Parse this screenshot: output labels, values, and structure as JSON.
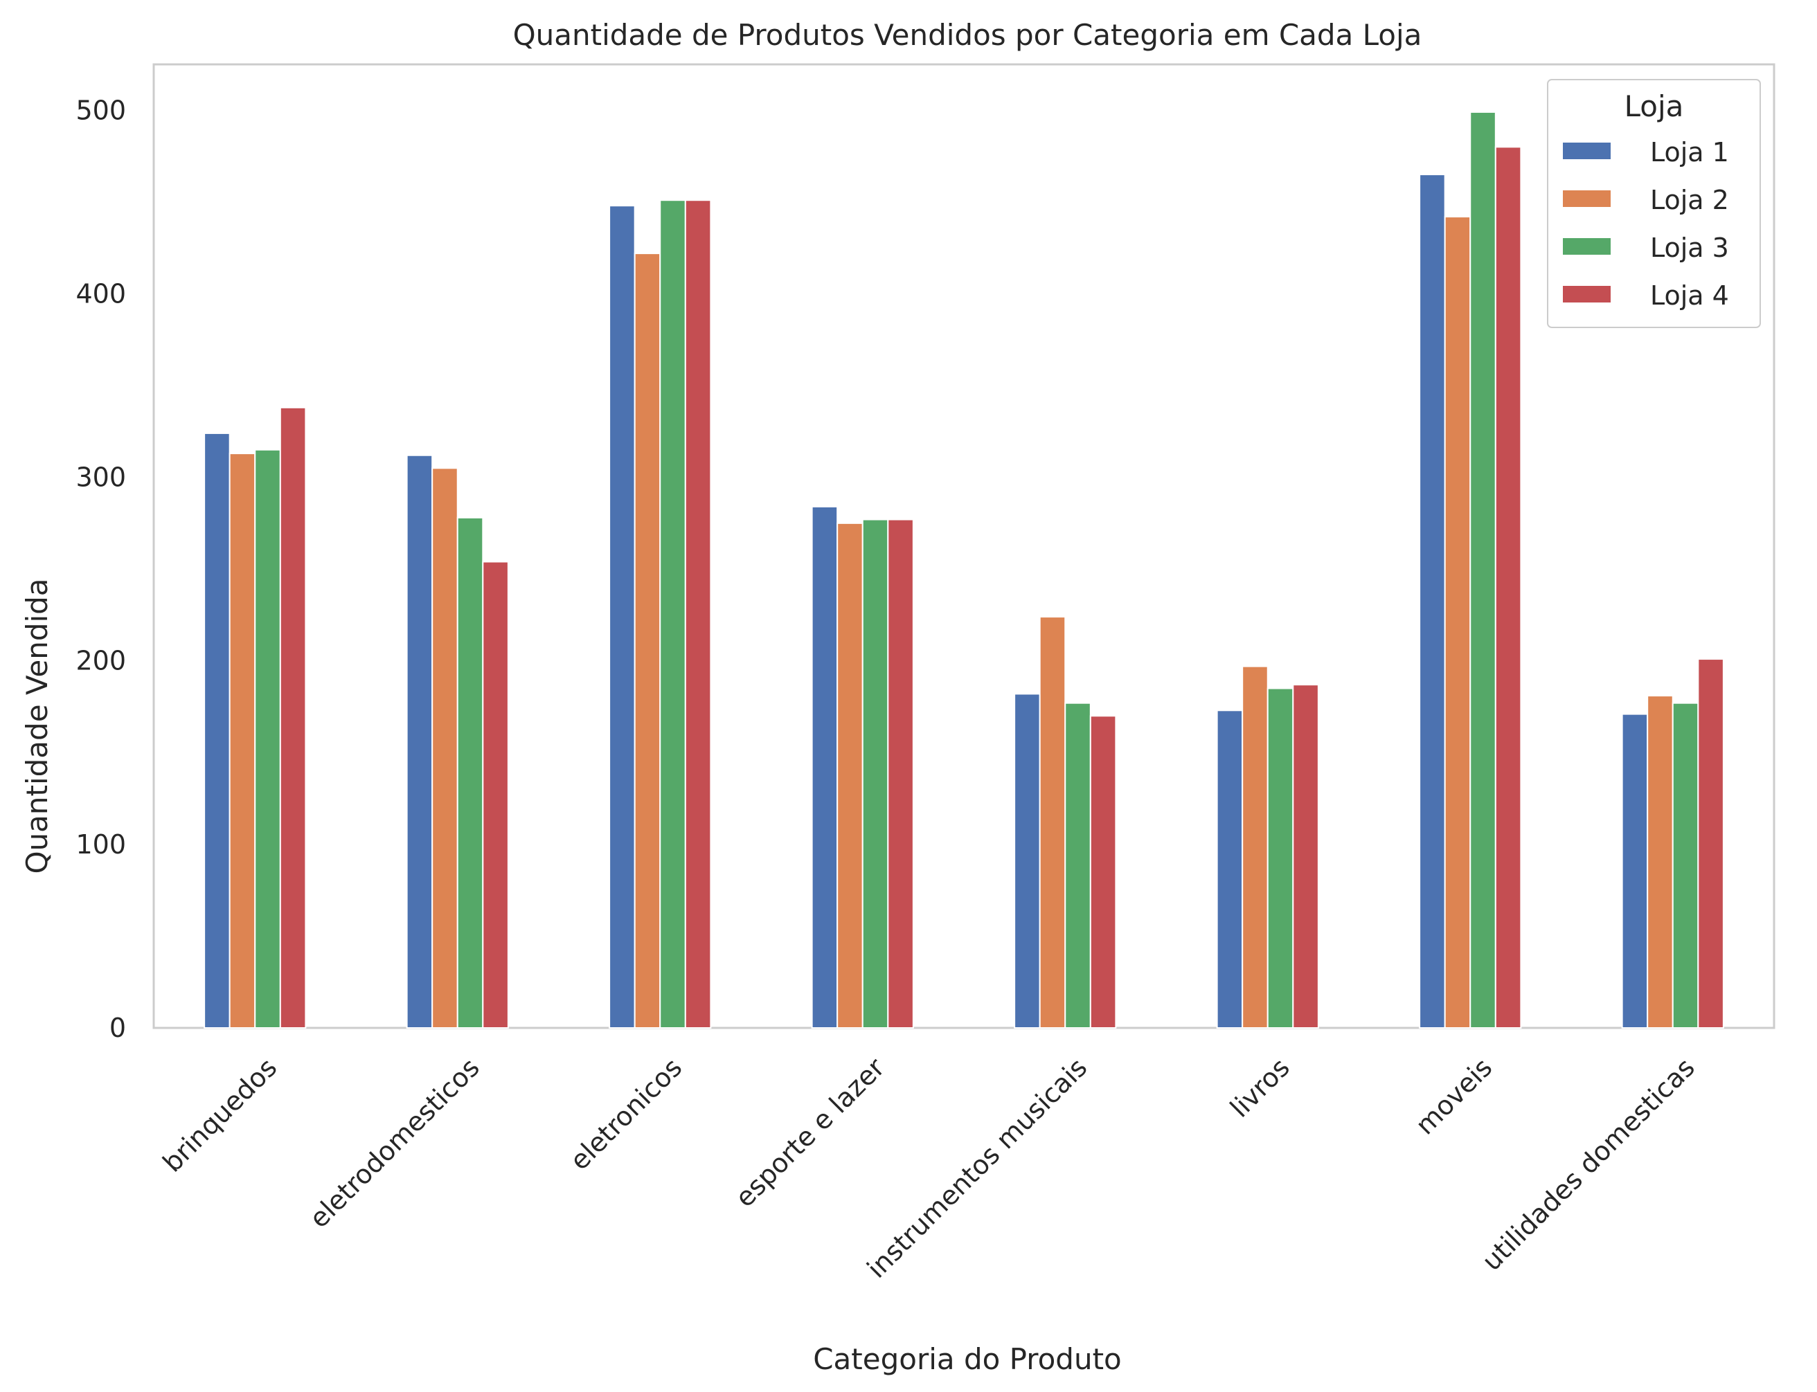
{
  "chart_data": {
    "type": "bar",
    "title": "Quantidade de Produtos Vendidos por Categoria em Cada Loja",
    "xlabel": "Categoria do Produto",
    "ylabel": "Quantidade Vendida",
    "ylim": [
      0,
      525
    ],
    "yticks": [
      0,
      100,
      200,
      300,
      400,
      500
    ],
    "grid": false,
    "legend": {
      "title": "Loja",
      "placement": "top-right"
    },
    "categories": [
      "brinquedos",
      "eletrodomesticos",
      "eletronicos",
      "esporte e lazer",
      "instrumentos musicais",
      "livros",
      "moveis",
      "utilidades domesticas"
    ],
    "series": [
      {
        "name": "Loja 1",
        "color": "#4c72b0",
        "values": [
          324,
          312,
          448,
          284,
          182,
          173,
          465,
          171
        ]
      },
      {
        "name": "Loja 2",
        "color": "#dd8452",
        "values": [
          313,
          305,
          422,
          275,
          224,
          197,
          442,
          181
        ]
      },
      {
        "name": "Loja 3",
        "color": "#55a868",
        "values": [
          315,
          278,
          451,
          277,
          177,
          185,
          499,
          177
        ]
      },
      {
        "name": "Loja 4",
        "color": "#c44e52",
        "values": [
          338,
          254,
          451,
          277,
          170,
          187,
          480,
          201
        ]
      }
    ]
  }
}
